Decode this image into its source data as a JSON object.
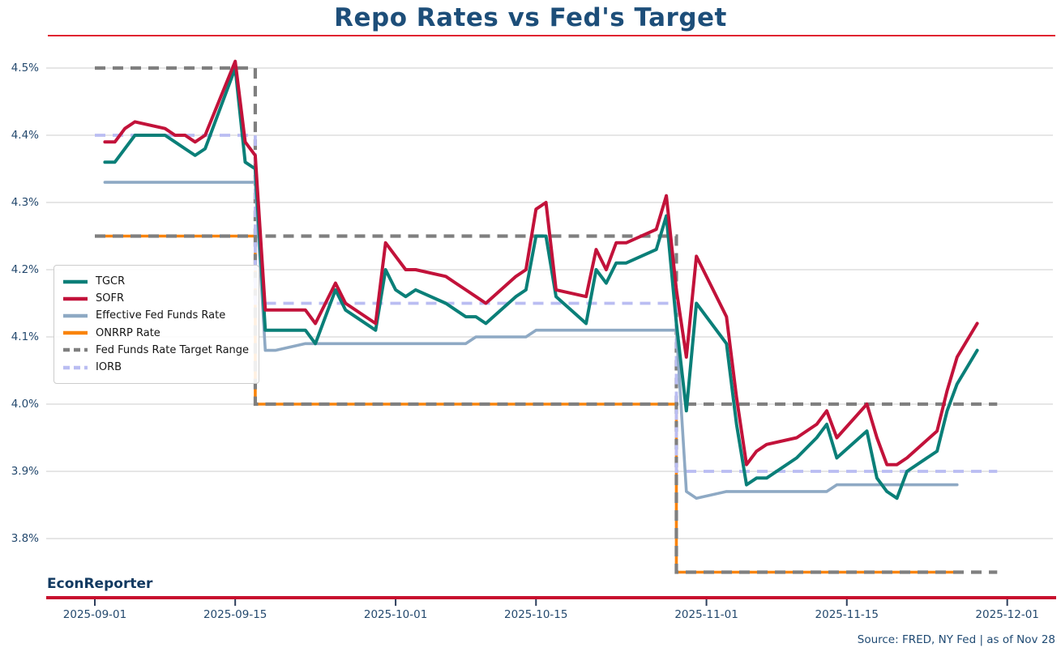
{
  "header": {
    "title": "Repo Rates vs Fed's Target"
  },
  "footer": {
    "brand": "EconReporter",
    "source": "Source: FRED, NY Fed | as of Nov 28"
  },
  "palette": {
    "title_navy": "#1d4e79",
    "tick_label_navy": "#24496e",
    "top_rule_red": "#e02431",
    "bottom_rule_red": "#c8102e",
    "gridline_gray": "#d8d8d8",
    "x_tick_mark": "#2e3f5c",
    "tgcr_teal": "#0a7f78",
    "sofr_crimson": "#c2123a",
    "effr_blue": "#8ea9c4",
    "onrrp_orange": "#f9830a",
    "target_gray": "#7f7f7f",
    "iorb_periwinkle": "#babdf2"
  },
  "chart_data": {
    "type": "line",
    "title": "Repo Rates vs Fed's Target",
    "xlabel": "",
    "ylabel": "",
    "grid": "horizontal-only",
    "legend_position": "center-left",
    "ylim": [
      3.73,
      4.535
    ],
    "x_range": [
      "2025-09-01",
      "2025-12-03"
    ],
    "y_ticks": [
      {
        "value": 3.8,
        "label": "3.8%"
      },
      {
        "value": 3.9,
        "label": "3.9%"
      },
      {
        "value": 4.0,
        "label": "4.0%"
      },
      {
        "value": 4.1,
        "label": "4.1%"
      },
      {
        "value": 4.2,
        "label": "4.2%"
      },
      {
        "value": 4.3,
        "label": "4.3%"
      },
      {
        "value": 4.4,
        "label": "4.4%"
      },
      {
        "value": 4.5,
        "label": "4.5%"
      }
    ],
    "x_tick_labels": [
      "2025-09-01",
      "2025-09-15",
      "2025-10-01",
      "2025-10-15",
      "2025-11-01",
      "2025-11-15",
      "2025-12-01"
    ],
    "dates": [
      "2025-09-02",
      "2025-09-03",
      "2025-09-04",
      "2025-09-05",
      "2025-09-08",
      "2025-09-09",
      "2025-09-10",
      "2025-09-11",
      "2025-09-12",
      "2025-09-15",
      "2025-09-16",
      "2025-09-17",
      "2025-09-18",
      "2025-09-19",
      "2025-09-22",
      "2025-09-23",
      "2025-09-24",
      "2025-09-25",
      "2025-09-26",
      "2025-09-29",
      "2025-09-30",
      "2025-10-01",
      "2025-10-02",
      "2025-10-03",
      "2025-10-06",
      "2025-10-07",
      "2025-10-08",
      "2025-10-09",
      "2025-10-10",
      "2025-10-13",
      "2025-10-14",
      "2025-10-15",
      "2025-10-16",
      "2025-10-17",
      "2025-10-20",
      "2025-10-21",
      "2025-10-22",
      "2025-10-23",
      "2025-10-24",
      "2025-10-27",
      "2025-10-28",
      "2025-10-29",
      "2025-10-30",
      "2025-10-31",
      "2025-11-03",
      "2025-11-04",
      "2025-11-05",
      "2025-11-06",
      "2025-11-07",
      "2025-11-10",
      "2025-11-12",
      "2025-11-13",
      "2025-11-14",
      "2025-11-17",
      "2025-11-18",
      "2025-11-19",
      "2025-11-20",
      "2025-11-21",
      "2025-11-24",
      "2025-11-25",
      "2025-11-26",
      "2025-11-28"
    ],
    "series": [
      {
        "name": "TGCR",
        "color": "#0a7f78",
        "dash": false,
        "width": 4,
        "values": [
          4.36,
          4.36,
          4.38,
          4.4,
          4.4,
          4.39,
          4.38,
          4.37,
          4.38,
          4.5,
          4.36,
          4.35,
          4.11,
          4.11,
          4.11,
          4.09,
          4.13,
          4.17,
          4.14,
          4.11,
          4.2,
          4.17,
          4.16,
          4.17,
          4.15,
          4.14,
          4.13,
          4.13,
          4.12,
          4.16,
          4.17,
          4.25,
          4.25,
          4.16,
          4.12,
          4.2,
          4.18,
          4.21,
          4.21,
          4.23,
          4.28,
          4.12,
          3.99,
          4.15,
          4.09,
          3.97,
          3.88,
          3.89,
          3.89,
          3.92,
          3.95,
          3.97,
          3.92,
          3.96,
          3.89,
          3.87,
          3.86,
          3.9,
          3.93,
          3.99,
          4.03,
          4.08
        ]
      },
      {
        "name": "SOFR",
        "color": "#c2123a",
        "dash": false,
        "width": 4,
        "values": [
          4.39,
          4.39,
          4.41,
          4.42,
          4.41,
          4.4,
          4.4,
          4.39,
          4.4,
          4.51,
          4.39,
          4.37,
          4.14,
          4.14,
          4.14,
          4.12,
          4.15,
          4.18,
          4.15,
          4.12,
          4.24,
          4.22,
          4.2,
          4.2,
          4.19,
          4.18,
          4.17,
          4.16,
          4.15,
          4.19,
          4.2,
          4.29,
          4.3,
          4.17,
          4.16,
          4.23,
          4.2,
          4.24,
          4.24,
          4.26,
          4.31,
          4.17,
          4.07,
          4.22,
          4.13,
          4.01,
          3.91,
          3.93,
          3.94,
          3.95,
          3.97,
          3.99,
          3.95,
          4.0,
          3.95,
          3.91,
          3.91,
          3.92,
          3.96,
          4.02,
          4.07,
          4.12
        ]
      },
      {
        "name": "Effective Fed Funds Rate",
        "color": "#8ea9c4",
        "dash": false,
        "width": 3.6,
        "values": [
          4.33,
          4.33,
          4.33,
          4.33,
          4.33,
          4.33,
          4.33,
          4.33,
          4.33,
          4.33,
          4.33,
          4.33,
          4.08,
          4.08,
          4.09,
          4.09,
          4.09,
          4.09,
          4.09,
          4.09,
          4.09,
          4.09,
          4.09,
          4.09,
          4.09,
          4.09,
          4.09,
          4.1,
          4.1,
          4.1,
          4.1,
          4.11,
          4.11,
          4.11,
          4.11,
          4.11,
          4.11,
          4.11,
          4.11,
          4.11,
          4.11,
          4.11,
          3.87,
          3.86,
          3.87,
          3.87,
          3.87,
          3.87,
          3.87,
          3.87,
          3.87,
          3.87,
          3.88,
          3.88,
          3.88,
          3.88,
          3.88,
          3.88,
          3.88,
          3.88,
          3.88,
          null
        ]
      }
    ],
    "policy_lines": [
      {
        "name": "ONRRP Rate",
        "color": "#f9830a",
        "dash": false,
        "width": 3.6,
        "segments": [
          {
            "from": "2025-09-01",
            "to": "2025-09-17",
            "value": 4.25
          },
          {
            "from": "2025-09-17",
            "to": "2025-10-29",
            "value": 4.0
          },
          {
            "from": "2025-10-29",
            "to": "2025-11-26",
            "value": 3.75
          }
        ]
      },
      {
        "name": "Fed Funds Rate Target Range",
        "color": "#7f7f7f",
        "dash": true,
        "width": 4.2,
        "segments_lower": [
          {
            "from": "2025-09-01",
            "to": "2025-09-17",
            "value": 4.25
          },
          {
            "from": "2025-09-17",
            "to": "2025-10-29",
            "value": 4.0
          },
          {
            "from": "2025-10-29",
            "to": "2025-11-30",
            "value": 3.75
          }
        ],
        "segments_upper": [
          {
            "from": "2025-09-01",
            "to": "2025-09-17",
            "value": 4.5
          },
          {
            "from": "2025-09-17",
            "to": "2025-10-29",
            "value": 4.25
          },
          {
            "from": "2025-10-29",
            "to": "2025-11-30",
            "value": 4.0
          }
        ]
      },
      {
        "name": "IORB",
        "color": "#babdf2",
        "dash": true,
        "width": 3.8,
        "segments": [
          {
            "from": "2025-09-01",
            "to": "2025-09-17",
            "value": 4.4
          },
          {
            "from": "2025-09-17",
            "to": "2025-10-29",
            "value": 4.15
          },
          {
            "from": "2025-10-29",
            "to": "2025-11-30",
            "value": 3.9
          }
        ]
      }
    ],
    "legend_order": [
      "TGCR",
      "SOFR",
      "Effective Fed Funds Rate",
      "ONRRP Rate",
      "Fed Funds Rate Target Range",
      "IORB"
    ]
  }
}
